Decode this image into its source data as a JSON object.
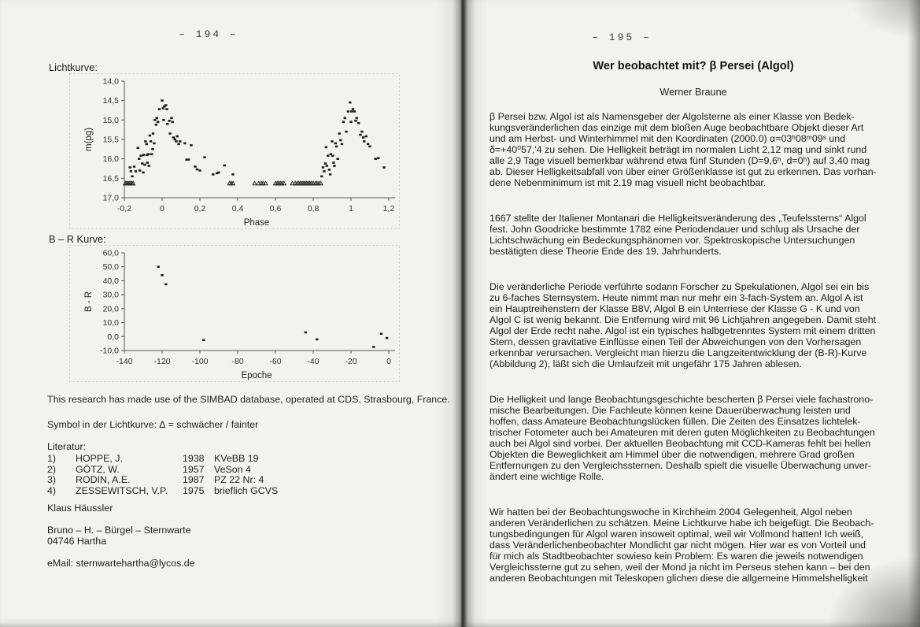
{
  "colors": {
    "ink": "#1f1f1f",
    "page": "#f3f2ee",
    "marker": "#1b1b1b",
    "axis": "#555555"
  },
  "left_page": {
    "page_number": "– 194 –",
    "lightcurve_label": "Lichtkurve:",
    "br_curve_label": "B – R Kurve:",
    "simbad_note": "This research has made use of the SIMBAD database, operated at CDS, Strasbourg, France.",
    "symbol_note": "Symbol in der Lichtkurve: ∆ = schwächer / fainter",
    "literature": {
      "heading": "Literatur:",
      "items": [
        {
          "num": "1)",
          "author": "HOPPE, J.",
          "year": "1938",
          "ref": "KVeBB 19"
        },
        {
          "num": "2)",
          "author": "GÖTZ, W.",
          "year": "1957",
          "ref": "VeSon 4"
        },
        {
          "num": "3)",
          "author": "RODIN, A.E.",
          "year": "1987",
          "ref": "PZ 22 Nr: 4"
        },
        {
          "num": "4)",
          "author": "ZESSEWITSCH, V.P.",
          "year": "1975",
          "ref": "brieflich GCVS"
        }
      ]
    },
    "observer": "Klaus Häussler",
    "address_line1": "Bruno – H. – Bürgel – Sternwarte",
    "address_line2": "04746 Hartha",
    "email_line": "eMail: sternwartehartha@lycos.de"
  },
  "right_page": {
    "page_number": "– 195 –",
    "title": "Wer beobachtet mit? β Persei (Algol)",
    "author": "Werner Braune",
    "paragraphs": [
      {
        "lines": [
          "β Persei bzw. Algol ist als Namensgeber der Algolsterne als einer Klasse von Bedek-",
          "kungsveränderlichen das einzige mit dem bloßen Auge beobachtbare Objekt dieser Art",
          "und am Herbst- und Winterhimmel mit den Koordinaten (2000.0) α=03ʰ08ᵐ09ˢ und",
          "δ=+40⁰57,'4 zu sehen. Die Helligkeit beträgt im normalen Licht 2,12 mag und sinkt rund",
          "alle 2,9 Tage visuell bemerkbar während etwa fünf Stunden (D=9,6ʰ, d=0ʰ) auf 3,40 mag",
          "ab. Dieser Helligkeitsabfall von über einer Größenklasse ist gut zu erkennen. Das vorhan-",
          "dene Nebenminimum ist mit 2.19 mag visuell nicht beobachtbar."
        ]
      },
      {
        "lines": [
          "1667 stellte der Italiener Montanari die Helligkeitsveränderung des „Teufelssterns“ Algol",
          "fest. John Goodricke bestimmte 1782 eine Periodendauer und schlug als Ursache der",
          "Lichtschwächung ein Bedeckungsphänomen vor. Spektroskopische Untersuchungen",
          "bestätigten diese Theorie Ende des 19. Jahrhunderts."
        ]
      },
      {
        "lines": [
          "Die veränderliche Periode verführte sodann Forscher zu Spekulationen, Algol sei ein bis",
          "zu 6-faches Sternsystem. Heute nimmt man nur mehr ein 3-fach-System an. Algol A ist",
          "ein Hauptreihenstern der Klasse B8V, Algol B ein Unterriese der Klasse G - K und von",
          "Algol C ist wenig bekannt. Die Entfernung wird mit 96 Lichtjahren angegeben. Damit steht",
          "Algol der Erde recht nahe. Algol ist ein typisches halbgetrenntes System mit einem dritten",
          "Stern, dessen gravitative Einflüsse einen Teil der Abweichungen von den Vorhersagen",
          "erkennbar verursachen. Vergleicht man hierzu die Langzeitentwicklung der (B-R)-Kurve",
          "(Abbildung 2), läßt sich die Umlaufzeit mit ungefähr 175 Jahren ablesen."
        ]
      },
      {
        "lines": [
          "Die Helligkeit und lange Beobachtungsgeschichte bescherten β Persei viele fachastrono-",
          "mische Bearbeitungen. Die Fachleute können keine Dauerüberwachung leisten und",
          "hoffen, dass Amateure Beobachtungslücken füllen. Die Zeiten des Einsatzes lichtelek-",
          "trischer Fotometer auch bei Amateuren mit deren guten Möglichkeiten zu Beobachtungen",
          "auch bei Algol sind vorbei. Der aktuellen Beobachtung mit CCD-Kameras fehlt bei hellen",
          "Objekten die Beweglichkeit am Himmel über die notwendigen, mehrere Grad großen",
          "Entfernungen zu den Vergleichssternen. Deshalb spielt die visuelle Überwachung unver-",
          "ändert eine wichtige Rolle."
        ]
      },
      {
        "lines": [
          "Wir hatten bei der Beobachtungswoche in Kirchheim 2004 Gelegenheit, Algol neben",
          "anderen Veränderlichen zu schätzen. Meine Lichtkurve habe ich beigefügt. Die Beobach-",
          "tungsbedingungen für Algol waren insoweit optimal, weil wir Vollmond hatten! Ich weiß,",
          "dass Veränderlichenbeobachter Mondlicht gar nicht mögen. Hier war es von Vorteil und",
          "für mich als Stadtbeobachter sowieso kein Problem: Es waren die jeweils notwendigen",
          "Vergleichssterne gut zu sehen, weil der Mond ja nicht im Perseus stehen kann – bei den",
          "anderen Beobachtungen mit Teleskopen glichen diese die allgemeine Himmelshelligkeit"
        ]
      }
    ]
  },
  "chart_data": [
    {
      "type": "scatter",
      "name": "Lichtkurve",
      "xlabel": "Phase",
      "ylabel": "m(pg)",
      "xlim": [
        -0.2,
        1.2
      ],
      "ylim_bottom_top": [
        17.0,
        14.0
      ],
      "x_ticks": [
        {
          "v": -0.2,
          "label": "-0,2"
        },
        {
          "v": 0,
          "label": "0"
        },
        {
          "v": 0.2,
          "label": "0,2"
        },
        {
          "v": 0.4,
          "label": "0,4"
        },
        {
          "v": 0.6,
          "label": "0,6"
        },
        {
          "v": 0.8,
          "label": "0,8"
        },
        {
          "v": 1,
          "label": "1"
        },
        {
          "v": 1.2,
          "label": "1,2"
        }
      ],
      "y_ticks": [
        {
          "v": 14.0,
          "label": "14,0"
        },
        {
          "v": 14.5,
          "label": "14,5"
        },
        {
          "v": 15.0,
          "label": "15,0"
        },
        {
          "v": 15.5,
          "label": "15,5"
        },
        {
          "v": 16.0,
          "label": "16,0"
        },
        {
          "v": 16.5,
          "label": "16,5"
        },
        {
          "v": 17.0,
          "label": "17,0"
        }
      ],
      "points": [
        [
          -0.17,
          16.22
        ],
        [
          -0.165,
          16.32
        ],
        [
          -0.158,
          16.45
        ],
        [
          -0.148,
          16.2
        ],
        [
          -0.14,
          16.32
        ],
        [
          -0.128,
          15.72
        ],
        [
          -0.122,
          16.0
        ],
        [
          -0.118,
          16.3
        ],
        [
          -0.112,
          15.92
        ],
        [
          -0.105,
          16.12
        ],
        [
          -0.1,
          16.35
        ],
        [
          -0.098,
          15.9
        ],
        [
          -0.092,
          16.15
        ],
        [
          -0.088,
          15.55
        ],
        [
          -0.082,
          15.62
        ],
        [
          -0.08,
          15.9
        ],
        [
          -0.078,
          16.1
        ],
        [
          -0.072,
          15.88
        ],
        [
          -0.07,
          16.18
        ],
        [
          -0.065,
          15.4
        ],
        [
          -0.06,
          15.55
        ],
        [
          -0.055,
          15.88
        ],
        [
          -0.05,
          15.75
        ],
        [
          -0.048,
          15.35
        ],
        [
          -0.042,
          15.6
        ],
        [
          -0.038,
          15.0
        ],
        [
          -0.032,
          15.12
        ],
        [
          -0.028,
          14.95
        ],
        [
          -0.022,
          15.05
        ],
        [
          -0.015,
          14.72
        ],
        [
          0.0,
          14.5
        ],
        [
          0.005,
          14.7
        ],
        [
          0.008,
          15.0
        ],
        [
          0.012,
          14.65
        ],
        [
          0.02,
          14.62
        ],
        [
          0.025,
          14.72
        ],
        [
          0.028,
          15.1
        ],
        [
          0.038,
          15.02
        ],
        [
          0.042,
          15.35
        ],
        [
          0.05,
          14.95
        ],
        [
          0.055,
          15.05
        ],
        [
          0.06,
          15.45
        ],
        [
          0.068,
          15.5
        ],
        [
          0.075,
          15.55
        ],
        [
          0.08,
          15.42
        ],
        [
          0.088,
          15.62
        ],
        [
          0.095,
          15.55
        ],
        [
          0.12,
          15.6
        ],
        [
          0.13,
          16.02
        ],
        [
          0.14,
          16.02
        ],
        [
          0.154,
          15.65
        ],
        [
          0.175,
          16.2
        ],
        [
          0.185,
          16.27
        ],
        [
          0.2,
          16.3
        ],
        [
          0.225,
          15.96
        ],
        [
          0.27,
          16.4
        ],
        [
          0.29,
          16.37
        ],
        [
          0.3,
          16.35
        ],
        [
          0.33,
          16.17
        ],
        [
          0.375,
          16.4
        ],
        [
          0.845,
          16.45
        ],
        [
          0.852,
          16.22
        ],
        [
          0.858,
          16.32
        ],
        [
          0.864,
          16.12
        ],
        [
          0.868,
          15.7
        ],
        [
          0.872,
          16.18
        ],
        [
          0.878,
          15.92
        ],
        [
          0.885,
          16.28
        ],
        [
          0.89,
          16.4
        ],
        [
          0.893,
          15.88
        ],
        [
          0.9,
          15.55
        ],
        [
          0.903,
          15.92
        ],
        [
          0.908,
          16.1
        ],
        [
          0.912,
          16.18
        ],
        [
          0.918,
          15.6
        ],
        [
          0.923,
          15.68
        ],
        [
          0.93,
          16.0
        ],
        [
          0.938,
          15.35
        ],
        [
          0.945,
          15.52
        ],
        [
          0.952,
          15.62
        ],
        [
          0.96,
          15.05
        ],
        [
          0.968,
          14.95
        ],
        [
          0.975,
          15.3
        ],
        [
          0.985,
          14.78
        ],
        [
          0.995,
          14.55
        ],
        [
          1.0,
          15.05
        ],
        [
          1.003,
          14.78
        ],
        [
          1.01,
          14.72
        ],
        [
          1.018,
          14.78
        ],
        [
          1.025,
          15.02
        ],
        [
          1.03,
          14.95
        ],
        [
          1.04,
          15.08
        ],
        [
          1.05,
          15.38
        ],
        [
          1.058,
          15.3
        ],
        [
          1.065,
          15.45
        ],
        [
          1.07,
          15.55
        ],
        [
          1.08,
          15.42
        ],
        [
          1.09,
          15.62
        ],
        [
          1.1,
          15.68
        ],
        [
          1.13,
          16.0
        ],
        [
          1.145,
          15.98
        ],
        [
          1.175,
          16.22
        ]
      ],
      "fainter_than_mag": 16.63,
      "fainter_than_phases": [
        -0.195,
        -0.188,
        -0.181,
        -0.174,
        -0.167,
        -0.16,
        -0.153,
        0.357,
        0.366,
        0.375,
        0.49,
        0.512,
        0.525,
        0.535,
        0.548,
        0.6,
        0.61,
        0.618,
        0.626,
        0.635,
        0.645,
        0.69,
        0.705,
        0.715,
        0.724,
        0.733,
        0.742,
        0.75,
        0.758,
        0.766,
        0.774,
        0.782,
        0.79,
        0.8,
        0.812,
        0.82,
        0.83,
        0.84
      ],
      "marker": "filled-square",
      "fainter_marker": "open-triangle",
      "grid": false,
      "legend": "none"
    },
    {
      "type": "scatter",
      "name": "B – R Kurve",
      "xlabel": "Epoche",
      "ylabel": "B - R",
      "xlim": [
        -140,
        0
      ],
      "ylim_bottom_top": [
        -10.0,
        60.0
      ],
      "x_ticks": [
        {
          "v": -140,
          "label": "-140"
        },
        {
          "v": -120,
          "label": "-120"
        },
        {
          "v": -100,
          "label": "-100"
        },
        {
          "v": -80,
          "label": "-80"
        },
        {
          "v": -60,
          "label": "-60"
        },
        {
          "v": -40,
          "label": "-40"
        },
        {
          "v": -20,
          "label": "-20"
        },
        {
          "v": 0,
          "label": "0"
        }
      ],
      "y_ticks": [
        {
          "v": 60,
          "label": "60,0"
        },
        {
          "v": 50,
          "label": "50,0"
        },
        {
          "v": 40,
          "label": "40,0"
        },
        {
          "v": 30,
          "label": "30,0"
        },
        {
          "v": 20,
          "label": "20,0"
        },
        {
          "v": 10,
          "label": "10,0"
        },
        {
          "v": 0,
          "label": "0,0"
        },
        {
          "v": -10,
          "label": "-10,0"
        }
      ],
      "points": [
        [
          -122,
          50
        ],
        [
          -120,
          44
        ],
        [
          -118,
          37.5
        ],
        [
          -98,
          -2.5
        ],
        [
          -44,
          3
        ],
        [
          -38,
          -2
        ],
        [
          -8,
          -7.5
        ],
        [
          -4,
          2
        ],
        [
          -1,
          -1
        ]
      ],
      "marker": "filled-square",
      "grid": false,
      "legend": "none"
    }
  ]
}
